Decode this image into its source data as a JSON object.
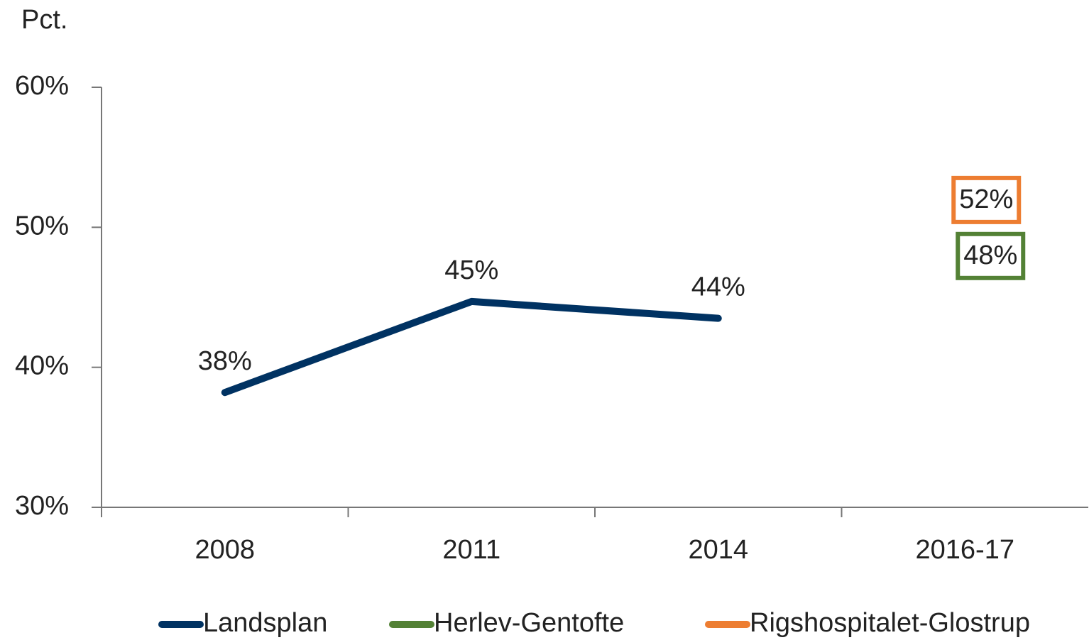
{
  "chart_data": {
    "type": "line",
    "y_axis_label": "Pct.",
    "categories": [
      "2008",
      "2011",
      "2014",
      "2016-17"
    ],
    "series": [
      {
        "name": "Landsplan",
        "color": "#003262",
        "values": [
          38.2,
          44.7,
          43.5,
          null
        ],
        "value_labels": [
          "38%",
          "45%",
          "44%",
          null
        ]
      },
      {
        "name": "Herlev-Gentofte",
        "color": "#538135",
        "values": [
          null,
          null,
          null,
          48
        ],
        "value_labels": [
          null,
          null,
          null,
          "48%"
        ]
      },
      {
        "name": "Rigshospitalet-Glostrup",
        "color": "#ed7d31",
        "values": [
          null,
          null,
          null,
          52
        ],
        "value_labels": [
          null,
          null,
          null,
          "52%"
        ]
      }
    ],
    "ylim": [
      30,
      60
    ],
    "yticks": [
      {
        "value": 30,
        "label": "30%"
      },
      {
        "value": 40,
        "label": "40%"
      },
      {
        "value": 50,
        "label": "50%"
      },
      {
        "value": 60,
        "label": "60%"
      }
    ],
    "grid": false,
    "legend": "bottom"
  }
}
